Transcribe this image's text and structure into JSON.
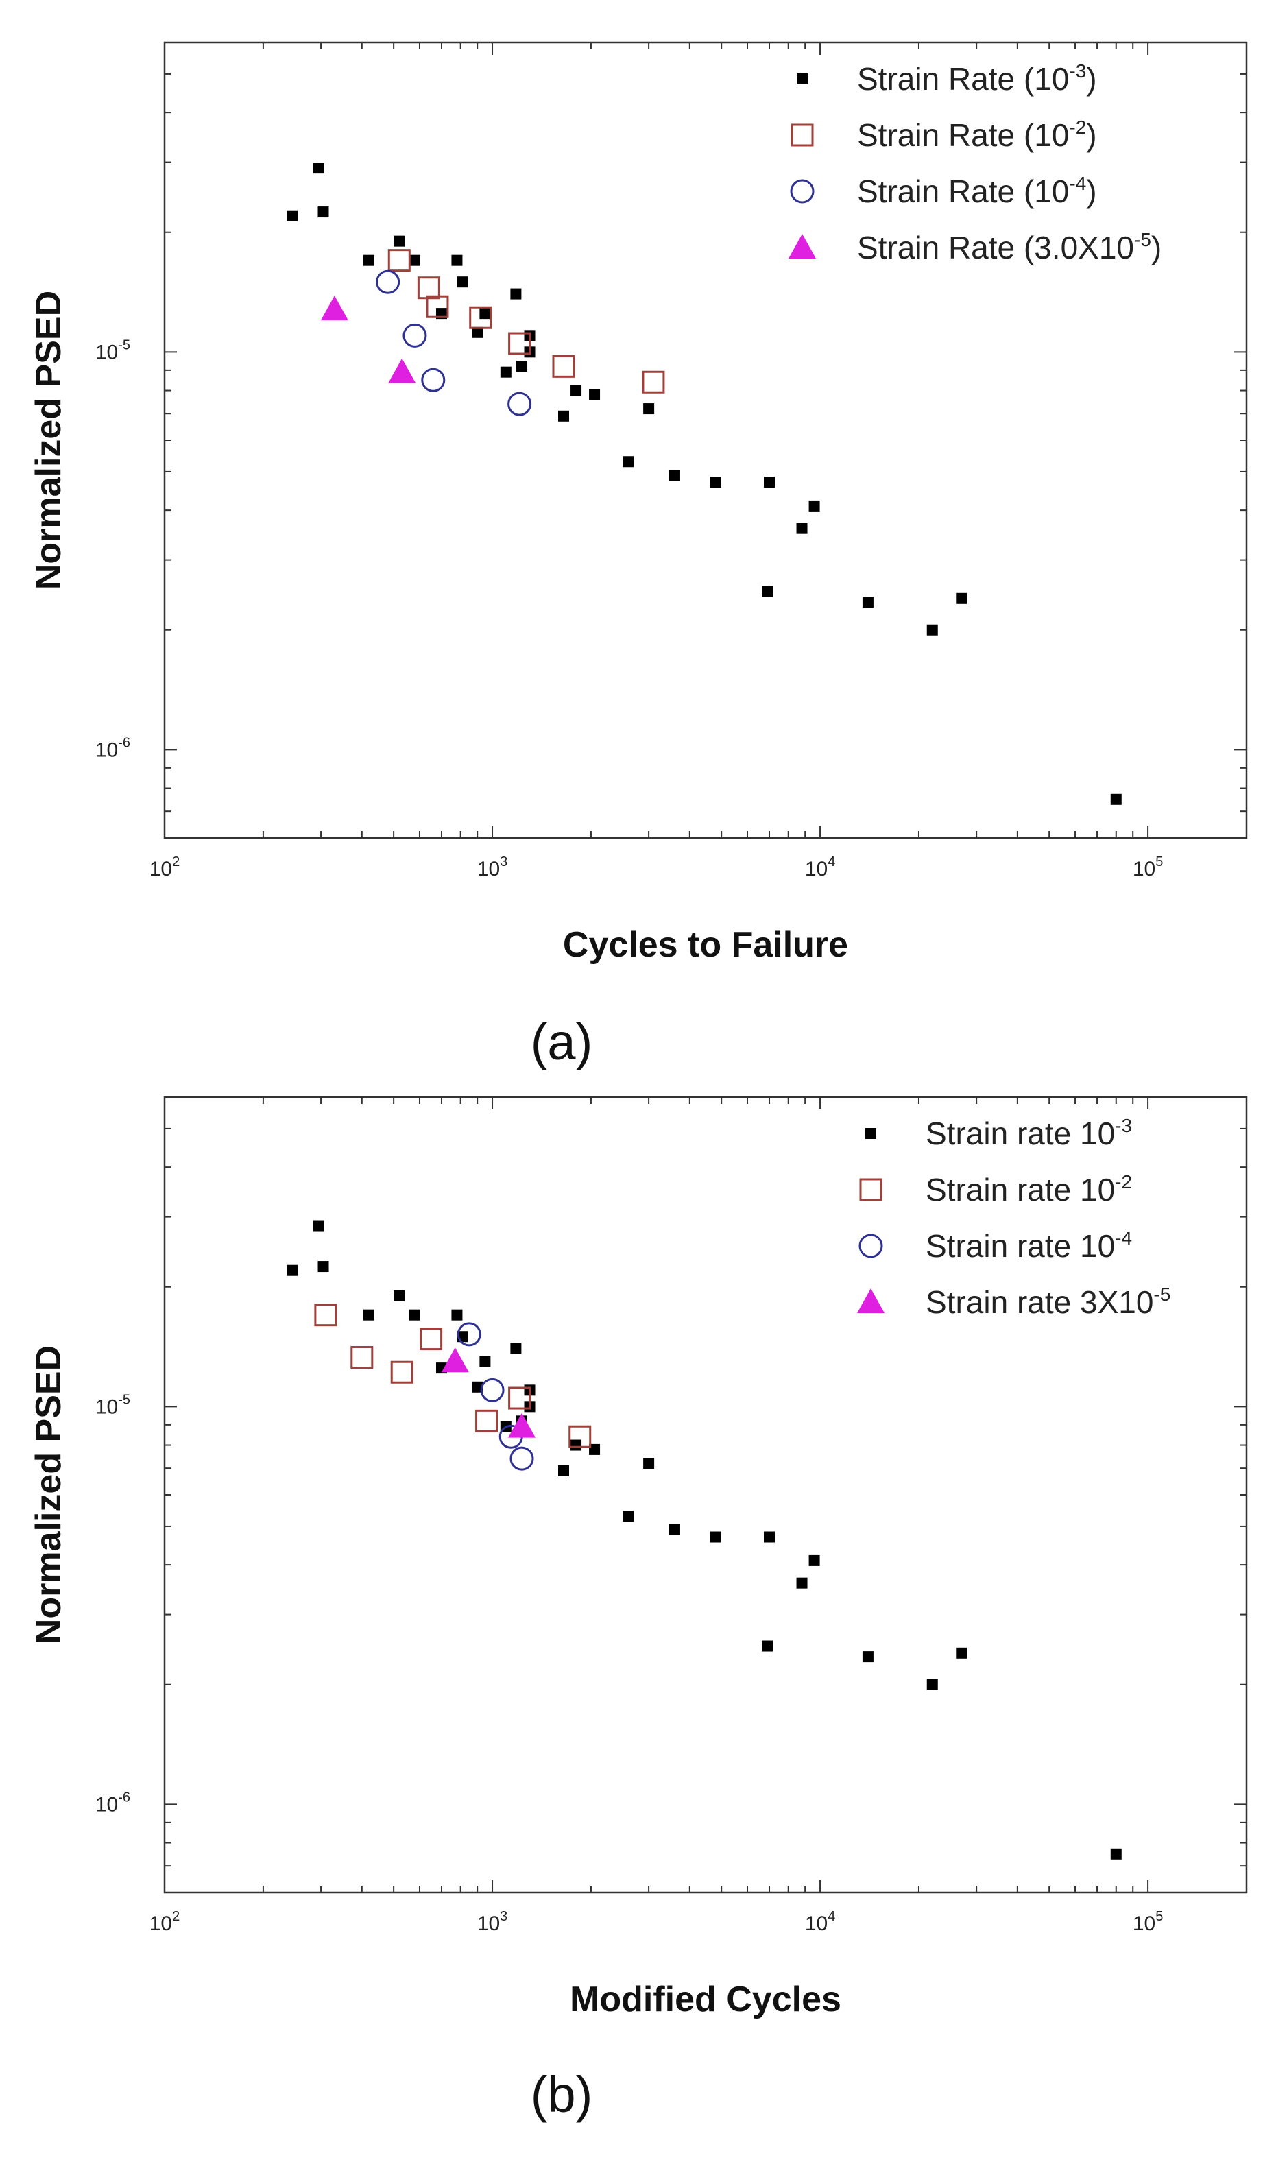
{
  "chart_data": [
    {
      "type": "scatter",
      "panel_label": "(a)",
      "xlabel": "Cycles to Failure",
      "ylabel": "Normalized PSED",
      "xscale": "log",
      "yscale": "log",
      "xlim": [
        100,
        200000
      ],
      "ylim": [
        6e-07,
        6e-05
      ],
      "xticks": [
        {
          "base": "10",
          "exp": "2"
        },
        {
          "base": "10",
          "exp": "3"
        },
        {
          "base": "10",
          "exp": "4"
        },
        {
          "base": "10",
          "exp": "5"
        }
      ],
      "yticks": [
        {
          "base": "10",
          "exp": "-6"
        },
        {
          "base": "10",
          "exp": "-5"
        }
      ],
      "legend_position": "top-right",
      "series": [
        {
          "name": "Strain Rate (10-3)",
          "legend_base": "Strain Rate (10",
          "legend_sup": "-3",
          "legend_tail": ")",
          "marker": "filled-square",
          "color": "#000000",
          "points": [
            [
              245,
              2.2e-05
            ],
            [
              295,
              2.9e-05
            ],
            [
              305,
              2.25e-05
            ],
            [
              420,
              1.7e-05
            ],
            [
              520,
              1.9e-05
            ],
            [
              580,
              1.7e-05
            ],
            [
              700,
              1.25e-05
            ],
            [
              780,
              1.7e-05
            ],
            [
              810,
              1.5e-05
            ],
            [
              900,
              1.12e-05
            ],
            [
              950,
              1.25e-05
            ],
            [
              1100,
              8.9e-06
            ],
            [
              1180,
              1.4e-05
            ],
            [
              1230,
              9.2e-06
            ],
            [
              1300,
              1.1e-05
            ],
            [
              1300,
              1e-05
            ],
            [
              1650,
              6.9e-06
            ],
            [
              1800,
              8e-06
            ],
            [
              2050,
              7.8e-06
            ],
            [
              2600,
              5.3e-06
            ],
            [
              3000,
              7.2e-06
            ],
            [
              3600,
              4.9e-06
            ],
            [
              4800,
              4.7e-06
            ],
            [
              6900,
              2.5e-06
            ],
            [
              7000,
              4.7e-06
            ],
            [
              8800,
              3.6e-06
            ],
            [
              9600,
              4.1e-06
            ],
            [
              14000,
              2.35e-06
            ],
            [
              22000,
              2e-06
            ],
            [
              27000,
              2.4e-06
            ],
            [
              80000,
              7.5e-07
            ]
          ]
        },
        {
          "name": "Strain Rate (10-2)",
          "legend_base": "Strain Rate (10",
          "legend_sup": "-2",
          "legend_tail": ")",
          "marker": "open-square",
          "color": "#a0403a",
          "points": [
            [
              520,
              1.7e-05
            ],
            [
              640,
              1.45e-05
            ],
            [
              680,
              1.3e-05
            ],
            [
              920,
              1.22e-05
            ],
            [
              1210,
              1.05e-05
            ],
            [
              1650,
              9.2e-06
            ],
            [
              3100,
              8.4e-06
            ]
          ]
        },
        {
          "name": "Strain Rate (10-4)",
          "legend_base": "Strain Rate (10",
          "legend_sup": "-4",
          "legend_tail": ")",
          "marker": "open-circle",
          "color": "#2e3192",
          "points": [
            [
              480,
              1.5e-05
            ],
            [
              580,
              1.1e-05
            ],
            [
              660,
              8.5e-06
            ],
            [
              1210,
              7.4e-06
            ]
          ]
        },
        {
          "name": "Strain Rate (3.0X10-5)",
          "legend_base": "Strain Rate (3.0X10",
          "legend_sup": "-5",
          "legend_tail": ")",
          "marker": "filled-triangle",
          "color": "#e020e0",
          "points": [
            [
              330,
              1.28e-05
            ],
            [
              530,
              8.9e-06
            ]
          ]
        }
      ]
    },
    {
      "type": "scatter",
      "panel_label": "(b)",
      "xlabel": "Modified Cycles",
      "ylabel": "Normalized PSED",
      "xscale": "log",
      "yscale": "log",
      "xlim": [
        100,
        200000
      ],
      "ylim": [
        6e-07,
        6e-05
      ],
      "xticks": [
        {
          "base": "10",
          "exp": "2"
        },
        {
          "base": "10",
          "exp": "3"
        },
        {
          "base": "10",
          "exp": "4"
        },
        {
          "base": "10",
          "exp": "5"
        }
      ],
      "yticks": [
        {
          "base": "10",
          "exp": "-6"
        },
        {
          "base": "10",
          "exp": "-5"
        }
      ],
      "legend_position": "top-right",
      "series": [
        {
          "name": "Strain rate 10-3",
          "legend_base": "Strain rate 10",
          "legend_sup": "-3",
          "legend_tail": "",
          "marker": "filled-square",
          "color": "#000000",
          "points": [
            [
              245,
              2.2e-05
            ],
            [
              295,
              2.85e-05
            ],
            [
              305,
              2.25e-05
            ],
            [
              420,
              1.7e-05
            ],
            [
              520,
              1.9e-05
            ],
            [
              580,
              1.7e-05
            ],
            [
              700,
              1.25e-05
            ],
            [
              780,
              1.7e-05
            ],
            [
              810,
              1.5e-05
            ],
            [
              900,
              1.12e-05
            ],
            [
              950,
              1.3e-05
            ],
            [
              1100,
              8.9e-06
            ],
            [
              1180,
              1.4e-05
            ],
            [
              1230,
              9.2e-06
            ],
            [
              1300,
              1.1e-05
            ],
            [
              1300,
              1e-05
            ],
            [
              1650,
              6.9e-06
            ],
            [
              1800,
              8e-06
            ],
            [
              2050,
              7.8e-06
            ],
            [
              2600,
              5.3e-06
            ],
            [
              3000,
              7.2e-06
            ],
            [
              3600,
              4.9e-06
            ],
            [
              4800,
              4.7e-06
            ],
            [
              6900,
              2.5e-06
            ],
            [
              7000,
              4.7e-06
            ],
            [
              8800,
              3.6e-06
            ],
            [
              9600,
              4.1e-06
            ],
            [
              14000,
              2.35e-06
            ],
            [
              22000,
              2e-06
            ],
            [
              27000,
              2.4e-06
            ],
            [
              80000,
              7.5e-07
            ]
          ]
        },
        {
          "name": "Strain rate 10-2",
          "legend_base": "Strain rate 10",
          "legend_sup": "-2",
          "legend_tail": "",
          "marker": "open-square",
          "color": "#a0403a",
          "points": [
            [
              310,
              1.7e-05
            ],
            [
              400,
              1.33e-05
            ],
            [
              530,
              1.22e-05
            ],
            [
              650,
              1.48e-05
            ],
            [
              960,
              9.2e-06
            ],
            [
              1210,
              1.05e-05
            ],
            [
              1850,
              8.4e-06
            ]
          ]
        },
        {
          "name": "Strain rate 10-4",
          "legend_base": "Strain rate 10",
          "legend_sup": "-4",
          "legend_tail": "",
          "marker": "open-circle",
          "color": "#2e3192",
          "points": [
            [
              850,
              1.52e-05
            ],
            [
              1000,
              1.1e-05
            ],
            [
              1140,
              8.4e-06
            ],
            [
              1230,
              7.4e-06
            ]
          ]
        },
        {
          "name": "Strain rate 3X10-5",
          "legend_base": "Strain rate 3X10",
          "legend_sup": "-5",
          "legend_tail": "",
          "marker": "filled-triangle",
          "color": "#e020e0",
          "points": [
            [
              770,
              1.3e-05
            ],
            [
              1230,
              8.9e-06
            ]
          ]
        }
      ]
    }
  ]
}
